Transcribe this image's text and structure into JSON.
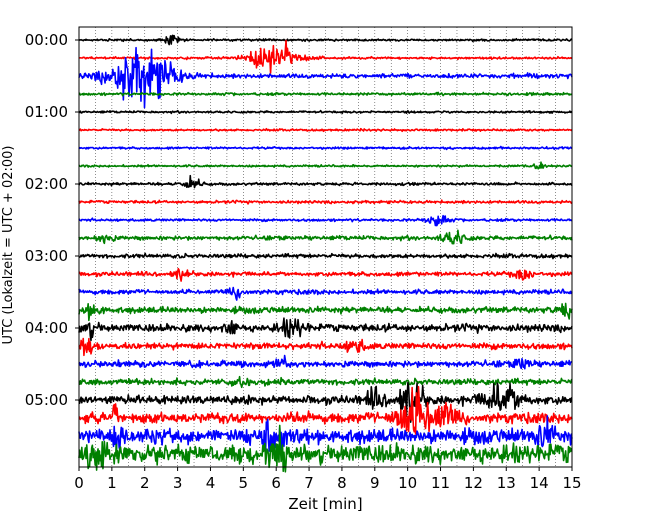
{
  "chart_data": {
    "type": "line",
    "title": "",
    "xlabel": "Zeit  [min]",
    "ylabel": "UTC (Lokalzeit = UTC + 02:00)",
    "xlim": [
      0,
      15
    ],
    "x_ticks": [
      "0",
      "1",
      "2",
      "3",
      "4",
      "5",
      "6",
      "7",
      "8",
      "9",
      "10",
      "11",
      "12",
      "13",
      "14",
      "15"
    ],
    "y_tick_labels": [
      {
        "label": "00:00",
        "row": 0
      },
      {
        "label": "01:00",
        "row": 4
      },
      {
        "label": "02:00",
        "row": 8
      },
      {
        "label": "03:00",
        "row": 12
      },
      {
        "label": "04:00",
        "row": 16
      },
      {
        "label": "05:00",
        "row": 20
      }
    ],
    "grid": "vertical dotted every 0.5 min",
    "row_interval_min": 15,
    "row_colors": [
      "#000000",
      "#ff0000",
      "#0000ff",
      "#008000"
    ],
    "series": [
      {
        "row": 0,
        "color": "#000000",
        "amplitude": 1,
        "events": [
          {
            "t": 2.8,
            "amp": 6,
            "dur": 0.3
          }
        ]
      },
      {
        "row": 1,
        "color": "#ff0000",
        "amplitude": 1,
        "events": [
          {
            "t": 6.0,
            "amp": 13,
            "dur": 1.1
          }
        ]
      },
      {
        "row": 2,
        "color": "#0000ff",
        "amplitude": 2,
        "events": [
          {
            "t": 1.9,
            "amp": 26,
            "dur": 1.3
          }
        ]
      },
      {
        "row": 3,
        "color": "#008000",
        "amplitude": 1.2,
        "events": []
      },
      {
        "row": 4,
        "color": "#000000",
        "amplitude": 1,
        "events": []
      },
      {
        "row": 5,
        "color": "#ff0000",
        "amplitude": 1,
        "events": []
      },
      {
        "row": 6,
        "color": "#0000ff",
        "amplitude": 1,
        "events": []
      },
      {
        "row": 7,
        "color": "#008000",
        "amplitude": 1,
        "events": [
          {
            "t": 14.0,
            "amp": 3,
            "dur": 0.2
          }
        ]
      },
      {
        "row": 8,
        "color": "#000000",
        "amplitude": 1.3,
        "events": [
          {
            "t": 3.4,
            "amp": 6,
            "dur": 0.4
          }
        ]
      },
      {
        "row": 9,
        "color": "#ff0000",
        "amplitude": 1.3,
        "events": []
      },
      {
        "row": 10,
        "color": "#0000ff",
        "amplitude": 1.2,
        "events": [
          {
            "t": 10.9,
            "amp": 7,
            "dur": 0.4
          }
        ]
      },
      {
        "row": 11,
        "color": "#008000",
        "amplitude": 2,
        "events": [
          {
            "t": 0.8,
            "amp": 5,
            "dur": 0.3
          },
          {
            "t": 11.4,
            "amp": 6,
            "dur": 0.5
          }
        ]
      },
      {
        "row": 12,
        "color": "#000000",
        "amplitude": 2,
        "events": []
      },
      {
        "row": 13,
        "color": "#ff0000",
        "amplitude": 2,
        "events": [
          {
            "t": 3.1,
            "amp": 5,
            "dur": 0.3
          },
          {
            "t": 13.5,
            "amp": 6,
            "dur": 0.4
          }
        ]
      },
      {
        "row": 14,
        "color": "#0000ff",
        "amplitude": 2.2,
        "events": [
          {
            "t": 4.8,
            "amp": 6,
            "dur": 0.4
          }
        ]
      },
      {
        "row": 15,
        "color": "#008000",
        "amplitude": 3,
        "events": [
          {
            "t": 0.4,
            "amp": 6,
            "dur": 0.4
          },
          {
            "t": 14.8,
            "amp": 7,
            "dur": 0.3
          }
        ]
      },
      {
        "row": 16,
        "color": "#000000",
        "amplitude": 3.5,
        "events": [
          {
            "t": 0.3,
            "amp": 7,
            "dur": 0.4
          },
          {
            "t": 4.6,
            "amp": 7,
            "dur": 0.3
          },
          {
            "t": 6.5,
            "amp": 8,
            "dur": 0.5
          }
        ]
      },
      {
        "row": 17,
        "color": "#ff0000",
        "amplitude": 3,
        "events": [
          {
            "t": 0.2,
            "amp": 7,
            "dur": 0.3
          },
          {
            "t": 8.4,
            "amp": 6,
            "dur": 0.4
          }
        ]
      },
      {
        "row": 18,
        "color": "#0000ff",
        "amplitude": 3,
        "events": [
          {
            "t": 6.1,
            "amp": 6,
            "dur": 0.3
          },
          {
            "t": 13.5,
            "amp": 6,
            "dur": 0.3
          }
        ]
      },
      {
        "row": 19,
        "color": "#008000",
        "amplitude": 3,
        "events": [
          {
            "t": 5.0,
            "amp": 5,
            "dur": 0.3
          }
        ]
      },
      {
        "row": 20,
        "color": "#000000",
        "amplitude": 4,
        "events": [
          {
            "t": 10.1,
            "amp": 18,
            "dur": 0.5
          },
          {
            "t": 12.9,
            "amp": 14,
            "dur": 0.8
          },
          {
            "t": 9.0,
            "amp": 8,
            "dur": 0.4
          }
        ]
      },
      {
        "row": 21,
        "color": "#ff0000",
        "amplitude": 5,
        "events": [
          {
            "t": 10.2,
            "amp": 22,
            "dur": 0.8
          },
          {
            "t": 1.1,
            "amp": 12,
            "dur": 0.1
          },
          {
            "t": 11.2,
            "amp": 12,
            "dur": 0.6
          }
        ]
      },
      {
        "row": 22,
        "color": "#0000ff",
        "amplitude": 7,
        "events": [
          {
            "t": 1.2,
            "amp": 12,
            "dur": 0.2
          },
          {
            "t": 5.9,
            "amp": 12,
            "dur": 0.5
          },
          {
            "t": 14.2,
            "amp": 10,
            "dur": 0.4
          }
        ]
      },
      {
        "row": 23,
        "color": "#008000",
        "amplitude": 9,
        "events": [
          {
            "t": 0.6,
            "amp": 10,
            "dur": 0.4
          },
          {
            "t": 6.0,
            "amp": 12,
            "dur": 0.6
          }
        ]
      }
    ]
  }
}
